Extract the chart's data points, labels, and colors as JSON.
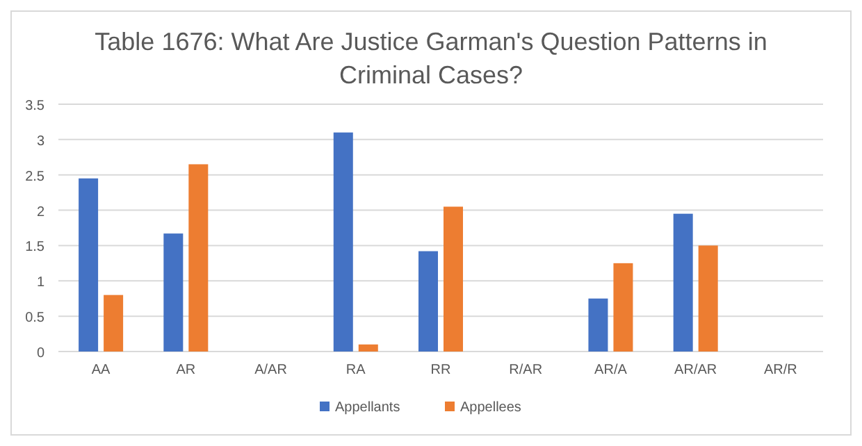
{
  "chart_data": {
    "type": "bar",
    "title": "Table 1676: What Are Justice Garman's Question Patterns in Criminal Cases?",
    "categories": [
      "AA",
      "AR",
      "A/AR",
      "RA",
      "RR",
      "R/AR",
      "AR/A",
      "AR/AR",
      "AR/R"
    ],
    "series": [
      {
        "name": "Appellants",
        "color": "#4472c4",
        "values": [
          2.45,
          1.67,
          0,
          3.1,
          1.42,
          0,
          0.75,
          1.95,
          0
        ]
      },
      {
        "name": "Appellees",
        "color": "#ed7d31",
        "values": [
          0.8,
          2.65,
          0,
          0.1,
          2.05,
          0,
          1.25,
          1.5,
          0
        ]
      }
    ],
    "ylim": [
      0,
      3.5
    ],
    "yticks": [
      0,
      0.5,
      1,
      1.5,
      2,
      2.5,
      3,
      3.5
    ],
    "grid": "y",
    "legend": "bottom"
  }
}
